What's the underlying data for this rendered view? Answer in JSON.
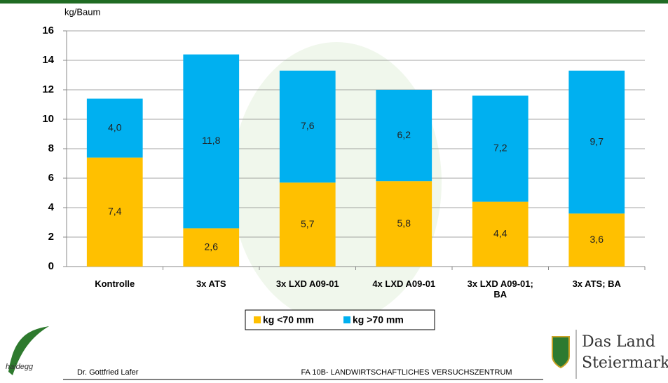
{
  "chart_data": {
    "type": "stacked_bar",
    "y_axis_label": "kg/Baum",
    "categories": [
      "Kontrolle",
      "3x ATS",
      "3x LXD A09-01",
      "4x LXD A09-01",
      "3x LXD A09-01; BA",
      "3x ATS; BA"
    ],
    "series": [
      {
        "name": "kg <70 mm",
        "color": "#FFC000",
        "values": [
          7.4,
          2.6,
          5.7,
          5.8,
          4.4,
          3.6
        ],
        "value_labels": [
          "7,4",
          "2,6",
          "5,7",
          "5,8",
          "4,4",
          "3,6"
        ]
      },
      {
        "name": "kg >70 mm",
        "color": "#00B0F0",
        "values": [
          4.0,
          11.8,
          7.6,
          6.2,
          7.2,
          9.7
        ],
        "value_labels": [
          "4,0",
          "11,8",
          "7,6",
          "6,2",
          "7,2",
          "9,7"
        ]
      }
    ],
    "ylim": [
      0,
      16
    ],
    "yticks": [
      0,
      2,
      4,
      6,
      8,
      10,
      12,
      14,
      16
    ],
    "grid": true,
    "legend": "bottom"
  },
  "footer": {
    "logo_left": "haidegg",
    "author": "Dr. Gottfried Lafer",
    "institution": "FA 10B- LANDWIRTSCHAFTLICHES VERSUCHSZENTRUM",
    "logo_right_line1": "Das Land",
    "logo_right_line2": "Steiermark"
  }
}
